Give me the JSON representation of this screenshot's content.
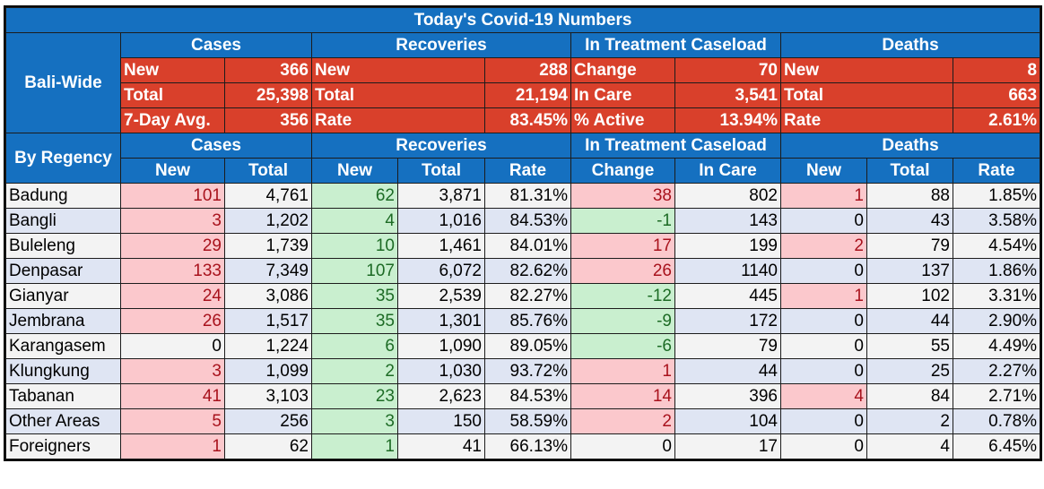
{
  "title": "Today's Covid-19 Numbers",
  "bali_wide": {
    "label": "Bali-Wide",
    "groups": [
      "Cases",
      "Recoveries",
      "In Treatment Caseload",
      "Deaths"
    ],
    "rows": [
      [
        [
          "New",
          "366"
        ],
        [
          "New",
          "288"
        ],
        [
          "Change",
          "70"
        ],
        [
          "New",
          "8"
        ]
      ],
      [
        [
          "Total",
          "25,398"
        ],
        [
          "Total",
          "21,194"
        ],
        [
          "In Care",
          "3,541"
        ],
        [
          "Total",
          "663"
        ]
      ],
      [
        [
          "7-Day Avg.",
          "356"
        ],
        [
          "Rate",
          "83.45%"
        ],
        [
          "% Active",
          "13.94%"
        ],
        [
          "Rate",
          "2.61%"
        ]
      ]
    ]
  },
  "by_regency": {
    "label": "By Regency",
    "groups": [
      "Cases",
      "Recoveries",
      "In Treatment Caseload",
      "Deaths"
    ],
    "columns": [
      "New",
      "Total",
      "New",
      "Total",
      "Rate",
      "Change",
      "In Care",
      "New",
      "Total",
      "Rate"
    ],
    "rows": [
      {
        "name": "Badung",
        "values": [
          "101",
          "4,761",
          "62",
          "3,871",
          "81.31%",
          "38",
          "802",
          "1",
          "88",
          "1.85%"
        ],
        "hl": [
          "red",
          "",
          "green",
          "",
          "",
          "red",
          "",
          "red",
          "",
          ""
        ]
      },
      {
        "name": "Bangli",
        "values": [
          "3",
          "1,202",
          "4",
          "1,016",
          "84.53%",
          "-1",
          "143",
          "0",
          "43",
          "3.58%"
        ],
        "hl": [
          "red",
          "",
          "green",
          "",
          "",
          "green",
          "",
          "",
          "",
          ""
        ]
      },
      {
        "name": "Buleleng",
        "values": [
          "29",
          "1,739",
          "10",
          "1,461",
          "84.01%",
          "17",
          "199",
          "2",
          "79",
          "4.54%"
        ],
        "hl": [
          "red",
          "",
          "green",
          "",
          "",
          "red",
          "",
          "red",
          "",
          ""
        ]
      },
      {
        "name": "Denpasar",
        "values": [
          "133",
          "7,349",
          "107",
          "6,072",
          "82.62%",
          "26",
          "1140",
          "0",
          "137",
          "1.86%"
        ],
        "hl": [
          "red",
          "",
          "green",
          "",
          "",
          "red",
          "",
          "",
          "",
          ""
        ]
      },
      {
        "name": "Gianyar",
        "values": [
          "24",
          "3,086",
          "35",
          "2,539",
          "82.27%",
          "-12",
          "445",
          "1",
          "102",
          "3.31%"
        ],
        "hl": [
          "red",
          "",
          "green",
          "",
          "",
          "green",
          "",
          "red",
          "",
          ""
        ]
      },
      {
        "name": "Jembrana",
        "values": [
          "26",
          "1,517",
          "35",
          "1,301",
          "85.76%",
          "-9",
          "172",
          "0",
          "44",
          "2.90%"
        ],
        "hl": [
          "red",
          "",
          "green",
          "",
          "",
          "green",
          "",
          "",
          "",
          ""
        ]
      },
      {
        "name": "Karangasem",
        "values": [
          "0",
          "1,224",
          "6",
          "1,090",
          "89.05%",
          "-6",
          "79",
          "0",
          "55",
          "4.49%"
        ],
        "hl": [
          "",
          "",
          "green",
          "",
          "",
          "green",
          "",
          "",
          "",
          ""
        ]
      },
      {
        "name": "Klungkung",
        "values": [
          "3",
          "1,099",
          "2",
          "1,030",
          "93.72%",
          "1",
          "44",
          "0",
          "25",
          "2.27%"
        ],
        "hl": [
          "red",
          "",
          "green",
          "",
          "",
          "red",
          "",
          "",
          "",
          ""
        ]
      },
      {
        "name": "Tabanan",
        "values": [
          "41",
          "3,103",
          "23",
          "2,623",
          "84.53%",
          "14",
          "396",
          "4",
          "84",
          "2.71%"
        ],
        "hl": [
          "red",
          "",
          "green",
          "",
          "",
          "red",
          "",
          "red",
          "",
          ""
        ]
      },
      {
        "name": "Other Areas",
        "values": [
          "5",
          "256",
          "3",
          "150",
          "58.59%",
          "2",
          "104",
          "0",
          "2",
          "0.78%"
        ],
        "hl": [
          "red",
          "",
          "green",
          "",
          "",
          "red",
          "",
          "",
          "",
          ""
        ]
      },
      {
        "name": "Foreigners",
        "values": [
          "1",
          "62",
          "1",
          "41",
          "66.13%",
          "0",
          "17",
          "0",
          "4",
          "6.45%"
        ],
        "hl": [
          "red",
          "",
          "green",
          "",
          "",
          "",
          "",
          "",
          "",
          ""
        ]
      }
    ]
  },
  "colors": {
    "header_blue": "#1570c0",
    "summary_red": "#d9402b",
    "increase_pink": "#fbc8cc",
    "recovery_green": "#c9efcf"
  }
}
